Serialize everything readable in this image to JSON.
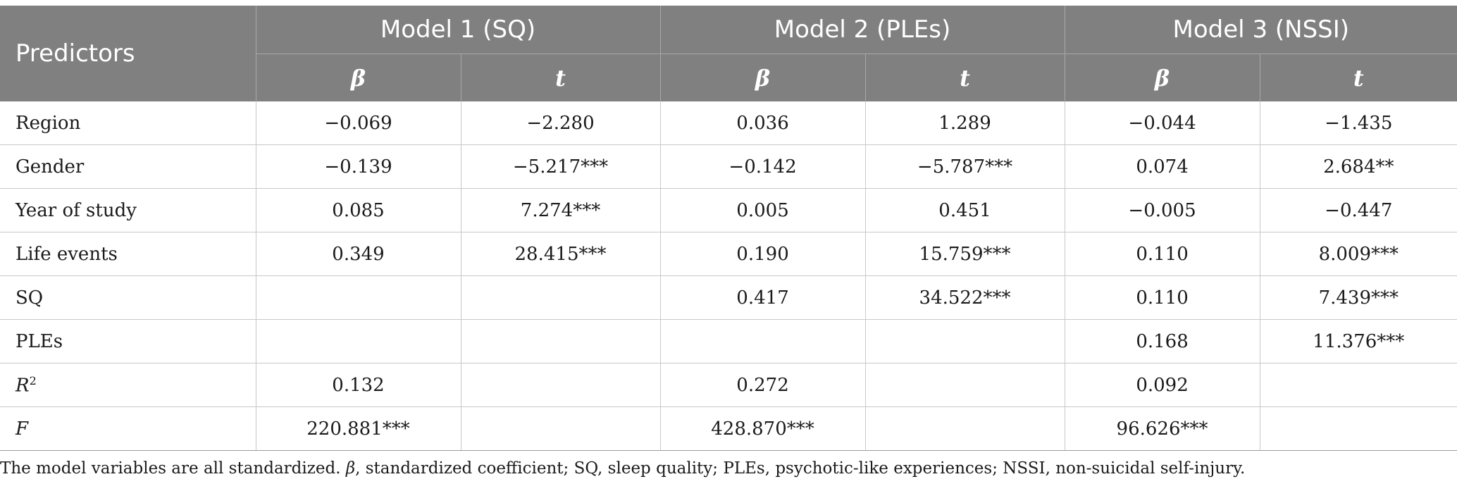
{
  "header": {
    "predictors": "Predictors",
    "models": [
      "Model 1 (SQ)",
      "Model 2 (PLEs)",
      "Model 3 (NSSI)"
    ],
    "sub": {
      "beta": "β",
      "t": "t"
    }
  },
  "rows": [
    {
      "label": "Region",
      "m1b": "−0.069",
      "m1t": "−2.280",
      "m2b": "0.036",
      "m2t": "1.289",
      "m3b": "−0.044",
      "m3t": "−1.435"
    },
    {
      "label": "Gender",
      "m1b": "−0.139",
      "m1t": "−5.217***",
      "m2b": "−0.142",
      "m2t": "−5.787***",
      "m3b": "0.074",
      "m3t": "2.684**"
    },
    {
      "label": "Year of study",
      "m1b": "0.085",
      "m1t": "7.274***",
      "m2b": "0.005",
      "m2t": "0.451",
      "m3b": "−0.005",
      "m3t": "−0.447"
    },
    {
      "label": "Life events",
      "m1b": "0.349",
      "m1t": "28.415***",
      "m2b": "0.190",
      "m2t": "15.759***",
      "m3b": "0.110",
      "m3t": "8.009***"
    },
    {
      "label": "SQ",
      "m1b": "",
      "m1t": "",
      "m2b": "0.417",
      "m2t": "34.522***",
      "m3b": "0.110",
      "m3t": "7.439***"
    },
    {
      "label": "PLEs",
      "m1b": "",
      "m1t": "",
      "m2b": "",
      "m2t": "",
      "m3b": "0.168",
      "m3t": "11.376***"
    }
  ],
  "r2": {
    "label": "R",
    "sup": "2",
    "m1": "0.132",
    "m2": "0.272",
    "m3": "0.092"
  },
  "f": {
    "label": "F",
    "m1": "220.881***",
    "m2": "428.870***",
    "m3": "96.626***"
  },
  "note": {
    "text1": "The model variables are all standardized. ",
    "beta": "β",
    "text2": ", standardized coefficient; SQ, sleep quality; PLEs, psychotic-like experiences; NSSI, non-suicidal self-injury."
  }
}
